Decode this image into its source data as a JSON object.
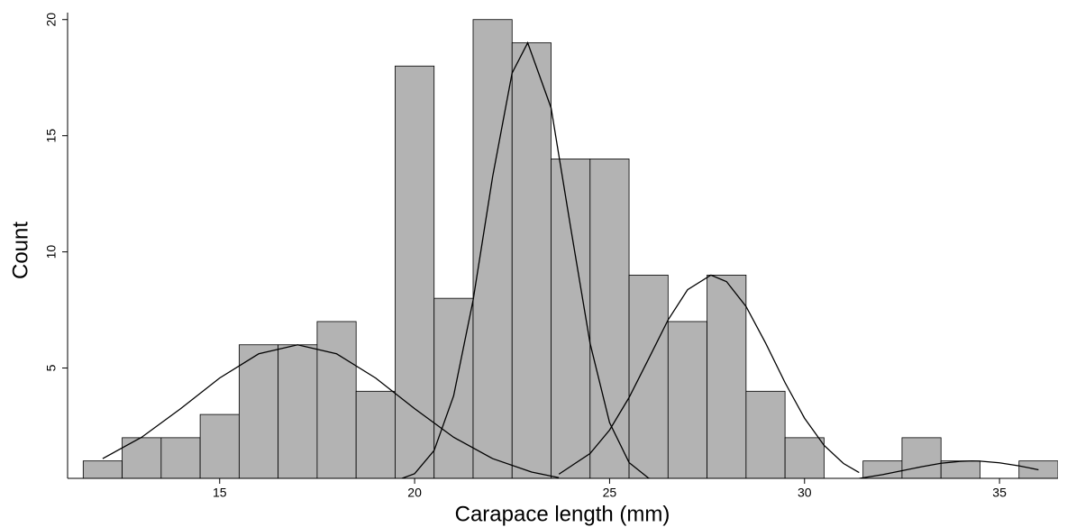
{
  "chart_data": {
    "type": "histogram",
    "x_label": "Carapace length (mm)",
    "y_label": "Count",
    "bins": [
      11.5,
      12.5,
      13.5,
      14.5,
      15.5,
      16.5,
      17.5,
      18.5,
      19.5,
      20.5,
      21.5,
      22.5,
      23.5,
      24.5,
      25.5,
      26.5,
      27.5,
      28.5,
      29.5,
      30.5,
      31.5,
      32.5,
      33.5,
      34.5,
      35.5,
      36.5
    ],
    "values": [
      1,
      2,
      2,
      3,
      6,
      6,
      7,
      4,
      18,
      8,
      20,
      19,
      14,
      14,
      9,
      7,
      9,
      4,
      2,
      0,
      1,
      2,
      1,
      0,
      1
    ],
    "color": "#b3b3b3",
    "curves": [
      {
        "color": "#000000",
        "x": [
          12,
          13,
          14,
          15,
          16,
          17,
          18,
          19,
          20,
          21,
          22,
          23,
          23.7
        ],
        "values": [
          1.1,
          2.02,
          3.25,
          4.57,
          5.61,
          6,
          5.61,
          4.57,
          3.25,
          2.02,
          1.1,
          0.52,
          0.28
        ]
      },
      {
        "color": "#000000",
        "x": [
          19.4,
          20,
          20.5,
          21,
          21.5,
          22,
          22.5,
          22.9,
          23.5,
          24,
          24.5,
          25,
          25.5,
          26,
          26.4
        ],
        "values": [
          0.08,
          0.45,
          1.45,
          3.8,
          7.92,
          13.23,
          17.7,
          19,
          16.2,
          11.07,
          6.06,
          2.65,
          0.93,
          0.26,
          0.08
        ]
      },
      {
        "color": "#000000",
        "x": [
          23.7,
          24.5,
          25,
          25.5,
          26,
          26.5,
          27,
          27.6,
          28,
          28.5,
          29,
          29.5,
          30,
          30.5,
          31,
          31.4
        ],
        "values": [
          0.43,
          1.32,
          2.33,
          3.73,
          5.39,
          7.07,
          8.37,
          9,
          8.72,
          7.65,
          6.08,
          4.37,
          2.84,
          1.67,
          0.89,
          0.5
        ]
      },
      {
        "color": "#000000",
        "x": [
          31.3,
          32,
          32.5,
          33,
          33.5,
          34,
          34.3,
          34.5,
          35,
          35.5,
          36
        ],
        "values": [
          0.22,
          0.41,
          0.58,
          0.75,
          0.9,
          0.985,
          1,
          0.993,
          0.92,
          0.79,
          0.62
        ]
      }
    ],
    "xlim": [
      11.1,
      36.5
    ],
    "xticks": [
      15,
      20,
      25,
      30,
      35
    ],
    "ylim": [
      0.25,
      20.3
    ],
    "yticks": [
      5,
      10,
      15,
      20
    ]
  }
}
